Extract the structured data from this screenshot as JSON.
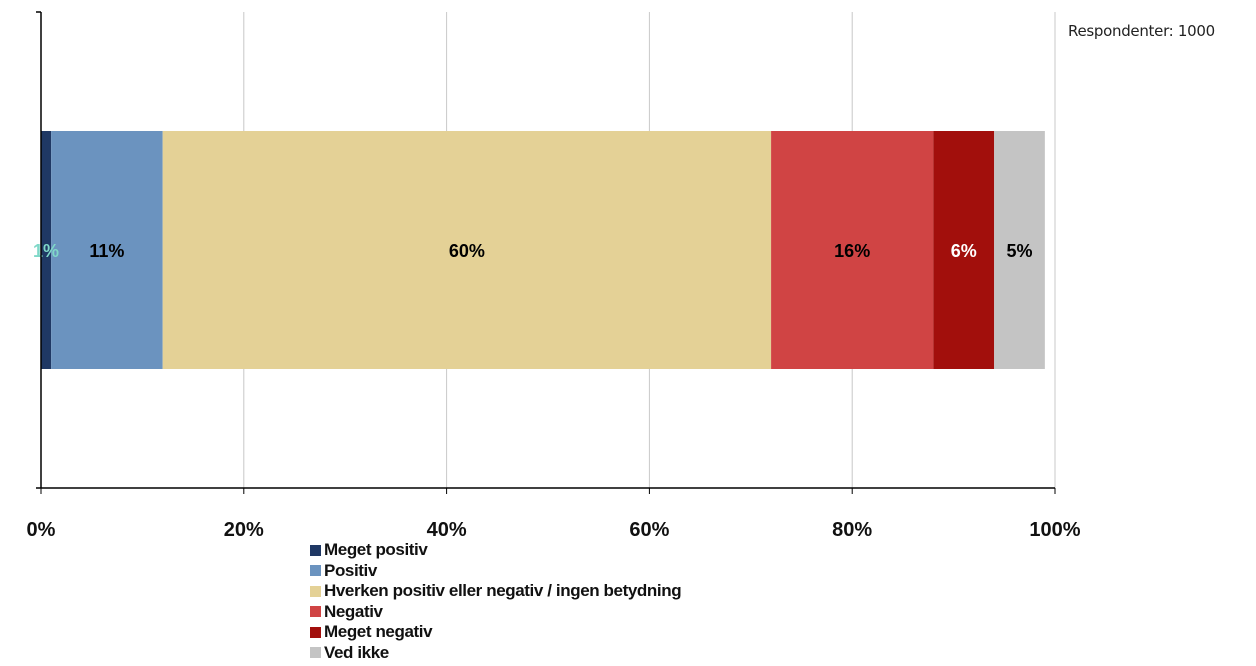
{
  "respondents_label": "Respondenter: 1000",
  "chart_data": {
    "type": "bar",
    "orientation": "horizontal",
    "stacked": true,
    "categories": [
      ""
    ],
    "series": [
      {
        "name": "Meget positiv",
        "values": [
          1
        ],
        "label": "1%",
        "color": "#1f3864",
        "label_color": "#7fd8c8"
      },
      {
        "name": "Positiv",
        "values": [
          11
        ],
        "label": "11%",
        "color": "#6b93bf",
        "label_color": "#000000"
      },
      {
        "name": "Hverken positiv eller negativ / ingen betydning",
        "values": [
          60
        ],
        "label": "60%",
        "color": "#e4d196",
        "label_color": "#000000"
      },
      {
        "name": "Negativ",
        "values": [
          16
        ],
        "label": "16%",
        "color": "#d04444",
        "label_color": "#000000"
      },
      {
        "name": "Meget negativ",
        "values": [
          6
        ],
        "label": "6%",
        "color": "#a20f0c",
        "label_color": "#ffffff"
      },
      {
        "name": "Ved ikke",
        "values": [
          5
        ],
        "label": "5%",
        "color": "#c4c4c4",
        "label_color": "#000000"
      }
    ],
    "xlim": [
      0,
      100
    ],
    "x_ticks": [
      "0%",
      "20%",
      "40%",
      "60%",
      "80%",
      "100%"
    ],
    "grid": true,
    "legend_position": "bottom",
    "title": "",
    "xlabel": "",
    "ylabel": ""
  },
  "legend": {
    "items": [
      {
        "label": "Meget positiv",
        "color": "#1f3864"
      },
      {
        "label": "Positiv",
        "color": "#6b93bf"
      },
      {
        "label": "Hverken positiv eller negativ / ingen betydning",
        "color": "#e4d196"
      },
      {
        "label": "Negativ",
        "color": "#d04444"
      },
      {
        "label": "Meget negativ",
        "color": "#a20f0c"
      },
      {
        "label": "Ved ikke",
        "color": "#c4c4c4"
      }
    ]
  }
}
